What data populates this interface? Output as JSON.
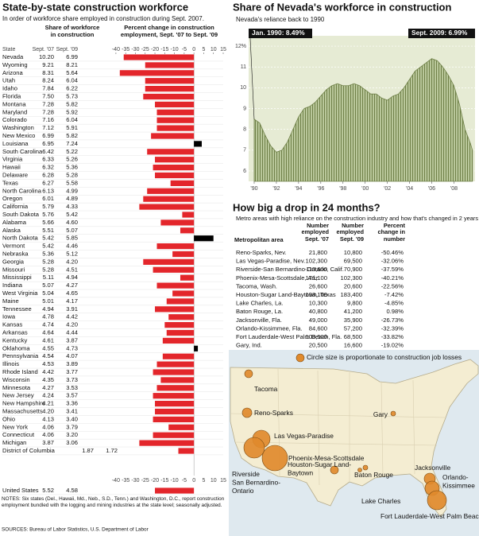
{
  "chart_data": [
    {
      "type": "bar",
      "orientation": "horizontal",
      "title": "State-by-state construction workforce",
      "subtitle": "In order of workforce share employed in construction during Sept. 2007.",
      "share_header": "Share of workforce in construction",
      "change_header": "Percent change in construction employment, Sept. '07 to Sept. '09",
      "state_label": "State",
      "col_2007": "Sept. '07",
      "col_2009": "Sept. '09",
      "categories": [
        "Nevada",
        "Wyoming",
        "Arizona",
        "Utah",
        "Idaho",
        "Florida",
        "Montana",
        "Maryland",
        "Colorado",
        "Washington",
        "New Mexico",
        "Louisiana",
        "South Carolina",
        "Virginia",
        "Hawaii",
        "Delaware",
        "Texas",
        "North Carolina",
        "Oregon",
        "California",
        "South Dakota",
        "Alabama",
        "Alaska",
        "North Dakota",
        "Vermont",
        "Nebraska",
        "Georgia",
        "Missouri",
        "Mississippi",
        "Indiana",
        "West Virginia",
        "Maine",
        "Tennessee",
        "Iowa",
        "Kansas",
        "Arkansas",
        "Kentucky",
        "Oklahoma",
        "Pennsylvania",
        "Illinois",
        "Rhode Island",
        "Wisconsin",
        "Minnesota",
        "New Jersey",
        "New Hampshire",
        "Massachusetts",
        "Ohio",
        "New York",
        "Connecticut",
        "Michigan",
        "District of Columbia"
      ],
      "share_2007": [
        "10.20",
        "9.21",
        "8.31",
        "8.24",
        "7.84",
        "7.50",
        "7.28",
        "7.28",
        "7.16",
        "7.12",
        "6.99",
        "6.95",
        "6.42",
        "6.33",
        "6.32",
        "6.28",
        "6.27",
        "6.13",
        "6.01",
        "5.79",
        "5.76",
        "5.66",
        "5.51",
        "5.42",
        "5.42",
        "5.36",
        "5.28",
        "5.28",
        "5.11",
        "5.07",
        "5.04",
        "5.01",
        "4.94",
        "4.78",
        "4.74",
        "4.64",
        "4.61",
        "4.55",
        "4.54",
        "4.53",
        "4.42",
        "4.35",
        "4.27",
        "4.24",
        "4.21",
        "4.20",
        "4.13",
        "4.06",
        "4.06",
        "3.87",
        "1.87"
      ],
      "share_2009": [
        "6.99",
        "8.21",
        "5.64",
        "6.04",
        "6.22",
        "5.73",
        "5.82",
        "5.92",
        "6.04",
        "5.91",
        "5.82",
        "7.24",
        "5.22",
        "5.26",
        "5.36",
        "5.28",
        "5.58",
        "4.99",
        "4.89",
        "4.33",
        "5.42",
        "4.60",
        "5.07",
        "5.85",
        "4.46",
        "5.12",
        "4.20",
        "4.51",
        "4.94",
        "4.27",
        "4.65",
        "4.17",
        "3.91",
        "4.42",
        "4.20",
        "4.44",
        "3.87",
        "4.73",
        "4.07",
        "3.89",
        "3.77",
        "3.73",
        "3.53",
        "3.57",
        "3.36",
        "3.41",
        "3.40",
        "3.79",
        "3.20",
        "3.06",
        "1.72"
      ],
      "values": [
        -36,
        -25,
        -38,
        -25,
        -25,
        -26,
        -20,
        -19,
        -19,
        -19,
        -22,
        4,
        -24,
        -20,
        -21,
        -20,
        -12,
        -24,
        -26,
        -28,
        -6,
        -17,
        -7,
        10,
        -19,
        -11,
        -26,
        -21,
        -7,
        -19,
        -11,
        -14,
        -20,
        -13,
        -15,
        -14,
        -16,
        2,
        -16,
        -19,
        -21,
        -17,
        -19,
        -21,
        -20,
        -20,
        -21,
        -13,
        -21,
        -28,
        -8
      ],
      "total": {
        "name": "United States",
        "share_2007": "5.52",
        "share_2009": "4.58",
        "value": -20
      },
      "colors": {
        "negative": "#e3262b",
        "positive": "#000000"
      },
      "xlim": [
        -42,
        15
      ],
      "xticks": [
        -40,
        -35,
        -30,
        -25,
        -20,
        -15,
        -10,
        -5,
        0,
        5,
        10,
        15
      ],
      "notes": "NOTES: Six states (Del., Hawaii, Md., Neb., S.D., Tenn.) and Washington, D.C., report construction employment bundled with the logging and mining industries at the state level; seasonally adjusted.",
      "sources": "SOURCES: Bureau of Labor Statistics, U.S. Department of Labor"
    },
    {
      "type": "area",
      "title": "Share of Nevada's workforce in construction",
      "subtitle": "Nevada's reliance back to 1990",
      "annotations": [
        "Jan. 1990: 8.49%",
        "Sept. 2009: 6.99%"
      ],
      "x": [
        1990,
        1990.5,
        1991,
        1991.5,
        1992,
        1992.5,
        1993,
        1993.5,
        1994,
        1994.5,
        1995,
        1995.5,
        1996,
        1996.5,
        1997,
        1997.5,
        1998,
        1998.5,
        1999,
        1999.5,
        2000,
        2000.5,
        2001,
        2001.5,
        2002,
        2002.5,
        2003,
        2003.5,
        2004,
        2004.5,
        2005,
        2005.5,
        2006,
        2006.5,
        2007,
        2007.5,
        2008,
        2008.5,
        2009,
        2009.5,
        2009.67
      ],
      "values": [
        8.49,
        8.3,
        7.7,
        7.2,
        6.9,
        7.0,
        7.4,
        8.0,
        8.6,
        9.0,
        9.1,
        9.3,
        9.6,
        9.9,
        10.1,
        10.2,
        10.1,
        10.1,
        10.2,
        10.1,
        9.9,
        9.7,
        9.7,
        9.5,
        9.4,
        9.6,
        9.7,
        10.0,
        10.4,
        10.8,
        11.0,
        11.2,
        11.4,
        11.3,
        11.0,
        10.6,
        10.1,
        9.2,
        8.0,
        7.3,
        6.99
      ],
      "color": "#a9b887",
      "background": "#e6ebd4",
      "xlim": [
        1989.5,
        2009.9
      ],
      "xticks": [
        {
          "value": 1990,
          "label": "'90"
        },
        {
          "value": 1992,
          "label": "'92"
        },
        {
          "value": 1994,
          "label": "'94"
        },
        {
          "value": 1996,
          "label": "'96"
        },
        {
          "value": 1998,
          "label": "'98"
        },
        {
          "value": 2000,
          "label": "'00"
        },
        {
          "value": 2002,
          "label": "'02"
        },
        {
          "value": 2004,
          "label": "'04"
        },
        {
          "value": 2006,
          "label": "'06"
        },
        {
          "value": 2008,
          "label": "'08"
        }
      ],
      "ylim": [
        5.5,
        12.5
      ],
      "yticks": [
        6,
        7,
        8,
        9,
        10,
        11,
        {
          "value": 12,
          "label": "12%"
        }
      ],
      "grid": true
    }
  ],
  "metro_table": {
    "title": "How big a drop in 24 months?",
    "subtitle": "Metro areas with high reliance on the construction industry and how that's changed in 2 years",
    "headers": [
      "Metropolitan area",
      "Number employed Sept. '07",
      "Number employed Sept. '09",
      "Percent change in number"
    ],
    "rows": [
      [
        "Reno-Sparks, Nev.",
        "21,800",
        "10,800",
        "-50.46%"
      ],
      [
        "Las Vegas-Paradise, Nev.",
        "102,300",
        "69,500",
        "-32.06%"
      ],
      [
        "Riverside-San Bernardino-Ontario, Calif.",
        "113,600",
        "70,900",
        "-37.59%"
      ],
      [
        "Phoenix-Mesa-Scottsdale, Ariz.",
        "171,100",
        "102,300",
        "-40.21%"
      ],
      [
        "Tacoma, Wash.",
        "26,600",
        "20,600",
        "-22.56%"
      ],
      [
        "Houston-Sugar Land-Baytown, Texas",
        "198,100",
        "183,400",
        "-7.42%"
      ],
      [
        "Lake Charles, La.",
        "10,300",
        "9,800",
        "-4.85%"
      ],
      [
        "Baton Rouge, La.",
        "40,800",
        "41,200",
        "0.98%"
      ],
      [
        "Jacksonville, Fla.",
        "49,000",
        "35,900",
        "-26.73%"
      ],
      [
        "Orlando-Kissimmee, Fla.",
        "84,600",
        "57,200",
        "-32.39%"
      ],
      [
        "Fort Lauderdale-West Palm Beach, Fla.",
        "103,500",
        "68,500",
        "-33.82%"
      ],
      [
        "Gary, Ind.",
        "20,500",
        "16,600",
        "-19.02%"
      ]
    ]
  },
  "map": {
    "legend": "Circle size is proportionate to construction job losses",
    "cities": [
      {
        "label_lines": [
          "Tacoma"
        ]
      },
      {
        "label_lines": [
          "Reno-Sparks"
        ]
      },
      {
        "label_lines": [
          "Gary"
        ]
      },
      {
        "label_lines": [
          "Las Vegas-Paradise"
        ]
      },
      {
        "label_lines": [
          "Phoenix-Mesa-Scottsdale"
        ]
      },
      {
        "label_lines": [
          "Riverside",
          "San Bernardino-",
          "Ontario"
        ]
      },
      {
        "label_lines": [
          "Houston-Sugar Land-",
          "Baytown"
        ]
      },
      {
        "label_lines": [
          "Baton Rouge"
        ]
      },
      {
        "label_lines": [
          "Lake Charles"
        ]
      },
      {
        "label_lines": [
          "Jacksonville"
        ]
      },
      {
        "label_lines": [
          "Orlando-",
          "Kissimmee"
        ]
      },
      {
        "label_lines": [
          "Fort Lauderdale-West Palm Beach"
        ]
      }
    ]
  }
}
